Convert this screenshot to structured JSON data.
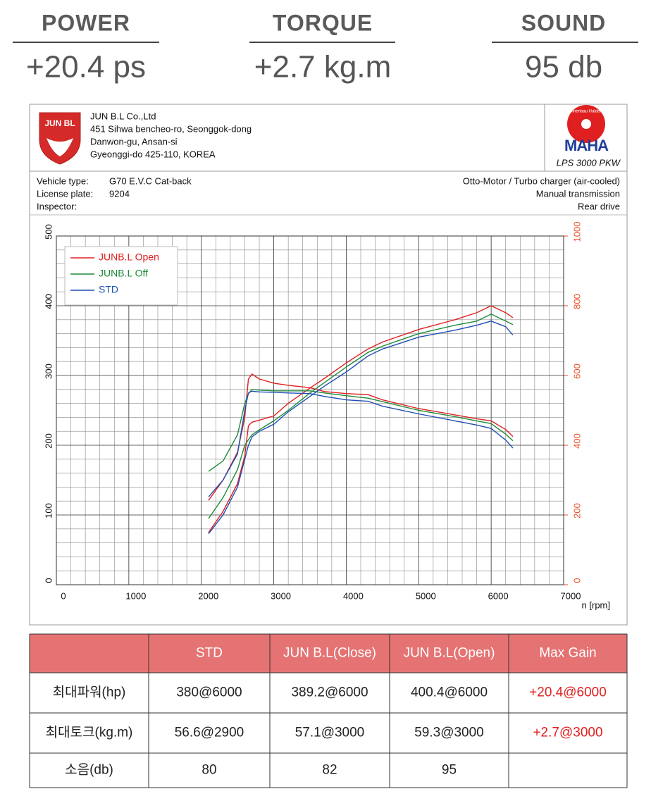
{
  "stats": [
    {
      "label": "POWER",
      "value": "+20.4 ps"
    },
    {
      "label": "TORQUE",
      "value": "+2.7 kg.m"
    },
    {
      "label": "SOUND",
      "value": "95 db"
    }
  ],
  "report": {
    "logo_text": "JUN BL",
    "company": [
      "JUN B.L Co.,Ltd",
      "451 Sihwa bencheo-ro, Seonggok-dong",
      "Danwon-gu, Ansan-si",
      "Gyeonggi-do 425-110, KOREA"
    ],
    "maha": {
      "ring": "Maschinenbau Haldenwang",
      "brand": "MAHA",
      "model": "LPS 3000 PKW"
    },
    "vehicle": [
      {
        "label": "Vehicle type:",
        "value": "G70 E.V.C Cat-back"
      },
      {
        "label": "License plate:",
        "value": "9204"
      },
      {
        "label": "Inspector:"
      }
    ],
    "engine": [
      "Otto-Motor / Turbo charger (air-cooled)",
      "Manual transmission",
      "Rear drive"
    ]
  },
  "chart_data": {
    "type": "line",
    "x_label": "n [rpm]",
    "x": [
      2100,
      2300,
      2500,
      2600,
      2650,
      2700,
      2800,
      3000,
      3200,
      3500,
      3700,
      4000,
      4300,
      4500,
      5000,
      5500,
      5800,
      6000,
      6200,
      6300
    ],
    "xlim": [
      0,
      7000
    ],
    "xticks": [
      0,
      1000,
      2000,
      3000,
      4000,
      5000,
      6000,
      7000
    ],
    "ylim": [
      0,
      500
    ],
    "yticks": [
      0,
      100,
      200,
      300,
      400,
      500
    ],
    "y2lim": [
      0,
      1000
    ],
    "y2ticks": [
      0,
      200,
      400,
      600,
      800,
      1000
    ],
    "grid": true,
    "legend": "top-left",
    "series": [
      {
        "name": "JUNB.L Open",
        "color": "#e02020",
        "values": [
          75,
          105,
          145,
          185,
          228,
          233,
          236,
          242,
          260,
          282,
          296,
          318,
          338,
          348,
          366,
          380,
          390,
          400,
          390,
          383
        ],
        "y2_values": [
          242,
          300,
          380,
          480,
          590,
          604,
          590,
          578,
          572,
          565,
          554,
          548,
          545,
          530,
          505,
          487,
          476,
          470,
          445,
          425
        ]
      },
      {
        "name": "JUNB.L Off",
        "color": "#1e8a3a",
        "values": [
          95,
          125,
          165,
          200,
          208,
          215,
          222,
          235,
          250,
          275,
          290,
          312,
          333,
          342,
          360,
          372,
          378,
          388,
          378,
          373
        ],
        "y2_values": [
          325,
          355,
          430,
          520,
          548,
          560,
          558,
          556,
          556,
          556,
          550,
          542,
          535,
          525,
          500,
          482,
          470,
          462,
          432,
          413
        ]
      },
      {
        "name": "STD",
        "color": "#1f4fb4",
        "values": [
          73,
          100,
          140,
          180,
          200,
          212,
          220,
          230,
          248,
          270,
          285,
          305,
          328,
          338,
          355,
          365,
          372,
          378,
          370,
          358
        ],
        "y2_values": [
          252,
          300,
          375,
          500,
          550,
          555,
          553,
          552,
          550,
          548,
          540,
          530,
          526,
          512,
          490,
          470,
          458,
          448,
          415,
          392
        ]
      }
    ]
  },
  "table": {
    "headers": [
      "STD",
      "JUN B.L(Close)",
      "JUN B.L(Open)",
      "Max Gain"
    ],
    "rows": [
      {
        "label": "최대파워(hp)",
        "cells": [
          "380@6000",
          "389.2@6000",
          "400.4@6000",
          "+20.4@6000"
        ]
      },
      {
        "label": "최대토크(kg.m)",
        "cells": [
          "56.6@2900",
          "57.1@3000",
          "59.3@3000",
          "+2.7@3000"
        ]
      },
      {
        "label": "소음(db)",
        "cells": [
          "80",
          "82",
          "95"
        ]
      }
    ]
  }
}
